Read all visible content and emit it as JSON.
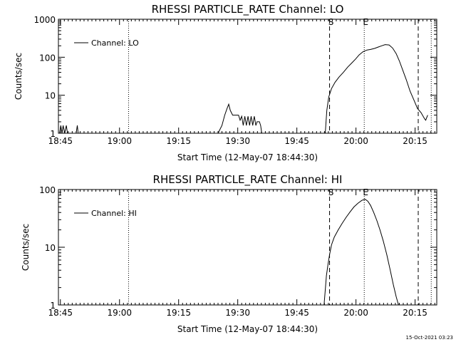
{
  "timestamp": "15-Oct-2021 03:23",
  "chart_data": [
    {
      "type": "line",
      "title": "RHESSI PARTICLE_RATE Channel: LO",
      "xlabel": "Start Time (12-May-07 18:44:30)",
      "ylabel": "Counts/sec",
      "yscale": "log",
      "xlim_minutes": [
        0,
        96
      ],
      "ylim": [
        1,
        1000
      ],
      "xticks": [
        {
          "minute": 0.5,
          "label": "18:45"
        },
        {
          "minute": 15.5,
          "label": "19:00"
        },
        {
          "minute": 30.5,
          "label": "19:15"
        },
        {
          "minute": 45.5,
          "label": "19:30"
        },
        {
          "minute": 60.5,
          "label": "19:45"
        },
        {
          "minute": 75.5,
          "label": "20:00"
        },
        {
          "minute": 90.5,
          "label": "20:15"
        }
      ],
      "yticks": [
        {
          "value": 1,
          "label": "1"
        },
        {
          "value": 10,
          "label": "10"
        },
        {
          "value": 100,
          "label": "100"
        },
        {
          "value": 1000,
          "label": "1000"
        }
      ],
      "legend": {
        "label": "Channel: LO",
        "position": "top-left"
      },
      "markers": [
        {
          "minute": 17.8,
          "style": "dotted",
          "label": ""
        },
        {
          "minute": 68.8,
          "style": "dashed",
          "label": "S"
        },
        {
          "minute": 77.6,
          "style": "dotted",
          "label": "E"
        },
        {
          "minute": 91.3,
          "style": "dashed",
          "label": ""
        },
        {
          "minute": 94.6,
          "style": "dotted",
          "label": ""
        }
      ],
      "series": [
        {
          "x": [
            0.3,
            0.6,
            0.9,
            1.2,
            1.6,
            2.0,
            2.3,
            2.7,
            2.9,
            3.2,
            3.5,
            3.7,
            4.0,
            4.2,
            4.5,
            4.8,
            5.0,
            40.5,
            41.5,
            42.2,
            42.8,
            43.2,
            43.6,
            44.2,
            44.5,
            44.9,
            45.3,
            45.7,
            46.1,
            46.5,
            46.9,
            47.3,
            47.7,
            48.1,
            48.5,
            48.9,
            49.3,
            49.7,
            50.1,
            50.4,
            50.7,
            51.0,
            51.3,
            51.6,
            52.0,
            67.7,
            68.1,
            68.6,
            69.3,
            70.2,
            71.2,
            72.3,
            73.4,
            74.4,
            75.4,
            76.3,
            77.3,
            78.3,
            79.2,
            80.2,
            81.1,
            82.0,
            82.9,
            83.9,
            84.8,
            85.7,
            86.5,
            87.4,
            88.3,
            89.2,
            90.2,
            91.1,
            92.0,
            92.9,
            93.2,
            93.4,
            93.7
          ],
          "values": [
            1,
            1.6,
            1,
            1.6,
            1,
            1.6,
            1,
            1,
            1,
            1,
            1,
            1,
            1,
            1,
            1,
            1.6,
            1,
            1,
            1.6,
            3,
            4.5,
            5.8,
            4,
            3,
            3,
            3,
            3,
            3,
            2.2,
            2.8,
            1.6,
            2.8,
            1.6,
            2.8,
            1.6,
            2.8,
            1.6,
            2.8,
            1.6,
            2,
            2,
            2,
            1.6,
            1,
            1,
            1,
            4,
            9,
            15,
            22,
            30,
            40,
            55,
            70,
            90,
            115,
            140,
            155,
            160,
            170,
            185,
            200,
            215,
            210,
            175,
            125,
            80,
            45,
            25,
            13,
            7.5,
            4.5,
            3.5,
            2.4,
            2.2,
            2.5,
            3
          ]
        }
      ]
    },
    {
      "type": "line",
      "title": "RHESSI PARTICLE_RATE Channel: HI",
      "xlabel": "Start Time (12-May-07 18:44:30)",
      "ylabel": "Counts/sec",
      "yscale": "log",
      "xlim_minutes": [
        0,
        96
      ],
      "ylim": [
        1,
        100
      ],
      "xticks": [
        {
          "minute": 0.5,
          "label": "18:45"
        },
        {
          "minute": 15.5,
          "label": "19:00"
        },
        {
          "minute": 30.5,
          "label": "19:15"
        },
        {
          "minute": 45.5,
          "label": "19:30"
        },
        {
          "minute": 60.5,
          "label": "19:45"
        },
        {
          "minute": 75.5,
          "label": "20:00"
        },
        {
          "minute": 90.5,
          "label": "20:15"
        }
      ],
      "yticks": [
        {
          "value": 1,
          "label": "1"
        },
        {
          "value": 10,
          "label": "10"
        },
        {
          "value": 100,
          "label": "100"
        }
      ],
      "legend": {
        "label": "Channel: HI",
        "position": "top-left"
      },
      "markers": [
        {
          "minute": 17.8,
          "style": "dotted",
          "label": ""
        },
        {
          "minute": 68.8,
          "style": "dashed",
          "label": "S"
        },
        {
          "minute": 77.6,
          "style": "dotted",
          "label": "E"
        },
        {
          "minute": 91.3,
          "style": "dashed",
          "label": ""
        },
        {
          "minute": 94.6,
          "style": "dotted",
          "label": ""
        }
      ],
      "series": [
        {
          "x": [
            67.4,
            67.7,
            68.0,
            68.4,
            68.8,
            69.3,
            70.0,
            71.0,
            72.0,
            73.0,
            74.0,
            75.0,
            76.0,
            77.0,
            77.8,
            78.5,
            79.2,
            80.0,
            80.8,
            81.6,
            82.4,
            83.3,
            84.2,
            85.0,
            85.7,
            86.3
          ],
          "values": [
            1,
            1.8,
            3.2,
            5,
            7.5,
            11,
            15,
            20,
            26,
            33,
            41,
            50,
            58,
            65,
            68,
            63,
            53,
            40,
            29,
            20,
            13,
            7.5,
            4,
            2.2,
            1.4,
            1
          ]
        }
      ]
    }
  ]
}
